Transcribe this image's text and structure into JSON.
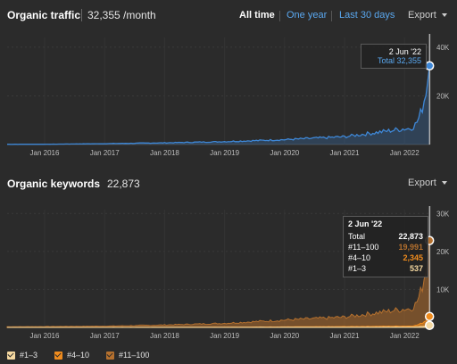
{
  "traffic": {
    "title": "Organic traffic",
    "value": "32,355 /month",
    "filters": [
      "All time",
      "One year",
      "Last 30 days"
    ],
    "export_label": "Export",
    "tooltip": {
      "date": "2 Jun '22",
      "total_label": "Total",
      "total_value": "32,355"
    }
  },
  "keywords": {
    "title": "Organic keywords",
    "value": "22,873",
    "export_label": "Export",
    "tooltip": {
      "date": "2 Jun '22",
      "rows": [
        {
          "label": "Total",
          "value": "22,873"
        },
        {
          "label": "#11–100",
          "value": "19,991"
        },
        {
          "label": "#4–10",
          "value": "2,345"
        },
        {
          "label": "#1–3",
          "value": "537"
        }
      ]
    }
  },
  "legend": [
    {
      "label": "#1–3",
      "color": "#f5d8a0"
    },
    {
      "label": "#4–10",
      "color": "#f08c1e"
    },
    {
      "label": "#11–100",
      "color": "#b4702e"
    }
  ],
  "colors": {
    "traffic_line": "#3e87d6",
    "keywords_total": "#b4702e",
    "keywords_4_10": "#f08c1e",
    "keywords_1_3": "#f5d8a0"
  },
  "chart_data": [
    {
      "type": "area",
      "title": "Organic traffic",
      "x": [
        "Jan 2016",
        "Jan 2017",
        "Jan 2018",
        "Jan 2019",
        "Jan 2020",
        "Jan 2021",
        "Jan 2022",
        "Jun 2022"
      ],
      "x_ticks": [
        "Jan 2016",
        "Jan 2017",
        "Jan 2018",
        "Jan 2019",
        "Jan 2020",
        "Jan 2021",
        "Jan 2022"
      ],
      "y_ticks": [
        "40K",
        "20K"
      ],
      "ylim": [
        0,
        44000
      ],
      "series": [
        {
          "name": "Total",
          "values": [
            120,
            350,
            700,
            1200,
            2000,
            3200,
            6500,
            32355
          ]
        }
      ]
    },
    {
      "type": "area",
      "title": "Organic keywords",
      "x": [
        "Jan 2016",
        "Jan 2017",
        "Jan 2018",
        "Jan 2019",
        "Jan 2020",
        "Jan 2021",
        "Jan 2022",
        "Jun 2022"
      ],
      "x_ticks": [
        "Jan 2016",
        "Jan 2017",
        "Jan 2018",
        "Jan 2019",
        "Jan 2020",
        "Jan 2021",
        "Jan 2022"
      ],
      "y_ticks": [
        "30K",
        "20K",
        "10K"
      ],
      "ylim": [
        0,
        31000
      ],
      "series": [
        {
          "name": "#11–100",
          "values": [
            200,
            300,
            600,
            1000,
            1800,
            2500,
            4500,
            19991
          ]
        },
        {
          "name": "#4–10",
          "values": [
            10,
            20,
            30,
            60,
            100,
            150,
            250,
            2345
          ]
        },
        {
          "name": "#1–3",
          "values": [
            5,
            10,
            15,
            25,
            40,
            60,
            100,
            537
          ]
        }
      ]
    }
  ]
}
